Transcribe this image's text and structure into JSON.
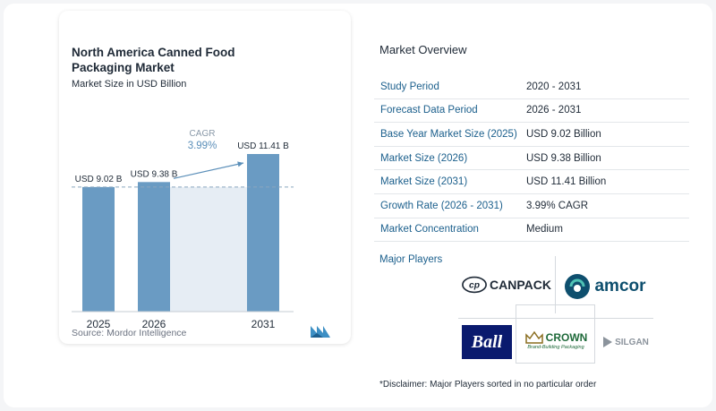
{
  "chart_data": {
    "type": "bar",
    "title": "North America Canned Food Packaging Market",
    "subtitle": "Market Size in USD Billion",
    "categories": [
      "2025",
      "2026",
      "2031"
    ],
    "values": [
      9.02,
      9.38,
      11.41
    ],
    "data_labels": [
      "USD 9.02 B",
      "USD 9.38 B",
      "USD 11.41 B"
    ],
    "annotation": {
      "label": "CAGR",
      "value": "3.99%"
    },
    "bar_color": "#6a9bc3",
    "reference_line": "dashed at 2025 value",
    "grid": false,
    "legend": "none"
  },
  "source": "Source:  Mordor Intelligence",
  "overview": {
    "title": "Market Overview",
    "rows": [
      {
        "label": "Study Period",
        "value": "2020 - 2031"
      },
      {
        "label": "Forecast Data Period",
        "value": "2026 - 2031"
      },
      {
        "label": "Base Year Market Size (2025)",
        "value": "USD 9.02 Billion"
      },
      {
        "label": "Market Size (2026)",
        "value": "USD 9.38 Billion"
      },
      {
        "label": "Market Size (2031)",
        "value": "USD 11.41 Billion"
      },
      {
        "label": "Growth Rate (2026 - 2031)",
        "value": "3.99% CAGR"
      },
      {
        "label": "Market Concentration",
        "value": "Medium"
      }
    ]
  },
  "players": {
    "title": "Major Players",
    "logos": {
      "canpack": "CANPACK",
      "canpack_mark": "cp",
      "amcor": "amcor",
      "ball": "Ball",
      "crown": "CROWN",
      "crown_tagline": "Brand-Building Packaging",
      "silgan": "SILGAN"
    }
  },
  "disclaimer": "*Disclaimer: Major Players sorted in no particular order",
  "colors": {
    "accent": "#1b5f8c",
    "bar": "#6a9bc3",
    "forecast_band": "#e6edf4",
    "cagr": "#5b8fb9"
  }
}
